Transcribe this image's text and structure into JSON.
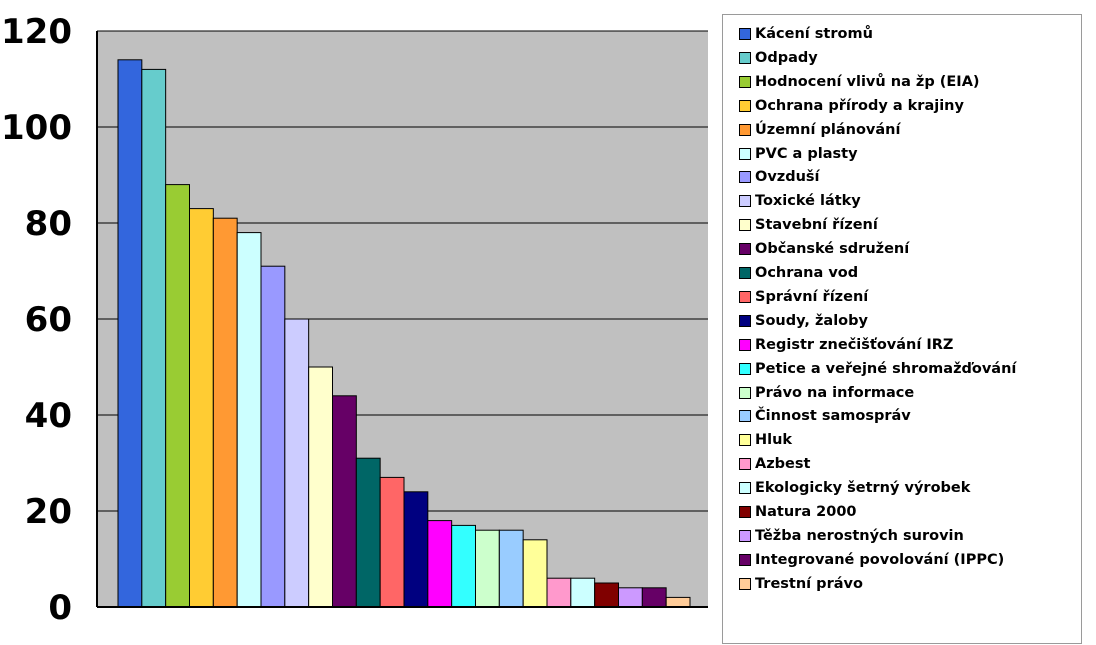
{
  "chart_data": {
    "type": "bar",
    "title": "",
    "xlabel": "",
    "ylabel": "",
    "ylim": [
      0,
      120
    ],
    "yticks": [
      0,
      20,
      40,
      60,
      80,
      100,
      120
    ],
    "grid": true,
    "legend_position": "right",
    "categories": [
      "Kácení stromů",
      "Odpady",
      "Hodnocení vlivů na žp (EIA)",
      "Ochrana přírody a krajiny",
      "Územní plánování",
      "PVC a plasty",
      "Ovzduší",
      "Toxické látky",
      "Stavební řízení",
      "Občanské sdružení",
      "Ochrana vod",
      "Správní řízení",
      "Soudy, žaloby",
      "Registr znečišťování IRZ",
      "Petice a veřejné shromažďování",
      "Právo na informace",
      "Činnost samospráv",
      "Hluk",
      "Azbest",
      "Ekologicky šetrný výrobek",
      "Natura 2000",
      "Těžba nerostných surovin",
      "Integrované povolování (IPPC)",
      "Trestní právo"
    ],
    "values": [
      114,
      112,
      88,
      83,
      81,
      78,
      71,
      60,
      50,
      44,
      31,
      27,
      24,
      18,
      17,
      16,
      16,
      14,
      6,
      6,
      5,
      4,
      4,
      2
    ],
    "colors": [
      "#3366dd",
      "#66cccc",
      "#99cc33",
      "#ffcc33",
      "#ff9933",
      "#ccffff",
      "#9999ff",
      "#ccccff",
      "#ffffcc",
      "#660066",
      "#006666",
      "#ff6666",
      "#000080",
      "#ff00ff",
      "#33ffff",
      "#ccffcc",
      "#99ccff",
      "#ffff99",
      "#ff99cc",
      "#ccffff",
      "#800000",
      "#cc99ff",
      "#660066",
      "#ffcc99"
    ]
  }
}
